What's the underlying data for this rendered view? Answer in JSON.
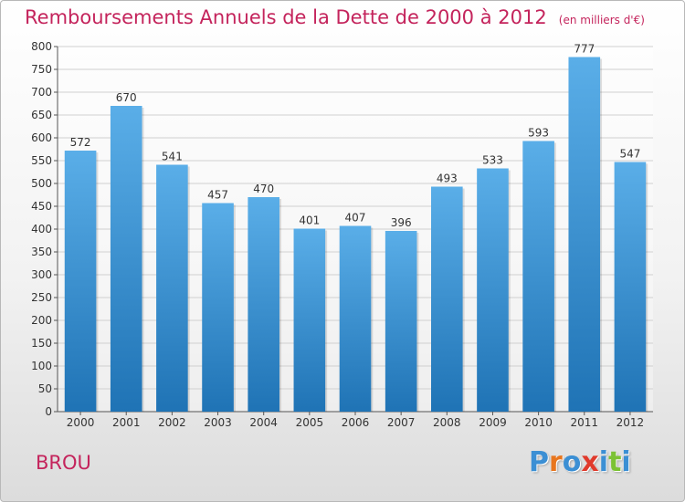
{
  "header": {
    "title": "Remboursements Annuels de la Dette de 2000 à 2012",
    "unit": "(en milliers d'€)"
  },
  "footer": {
    "commune": "BROU",
    "logo_text": "Proxiti"
  },
  "colors": {
    "title": "#c4245c",
    "bar_top": "#5aaee8",
    "bar_bottom": "#1f73b5",
    "logo": [
      "#3b8fd4",
      "#e8761e",
      "#3b8fd4",
      "#e03a2c",
      "#3b8fd4",
      "#7cc234",
      "#3b8fd4"
    ]
  },
  "chart_data": {
    "type": "bar",
    "title": "Remboursements Annuels de la Dette de 2000 à 2012",
    "xlabel": "",
    "ylabel": "",
    "categories": [
      "2000",
      "2001",
      "2002",
      "2003",
      "2004",
      "2005",
      "2006",
      "2007",
      "2008",
      "2009",
      "2010",
      "2011",
      "2012"
    ],
    "values": [
      572,
      670,
      541,
      457,
      470,
      401,
      407,
      396,
      493,
      533,
      593,
      777,
      547
    ],
    "ylim": [
      0,
      800
    ],
    "yticks": [
      0,
      50,
      100,
      150,
      200,
      250,
      300,
      350,
      400,
      450,
      500,
      550,
      600,
      650,
      700,
      750,
      800
    ],
    "grid": true,
    "legend": "none"
  }
}
